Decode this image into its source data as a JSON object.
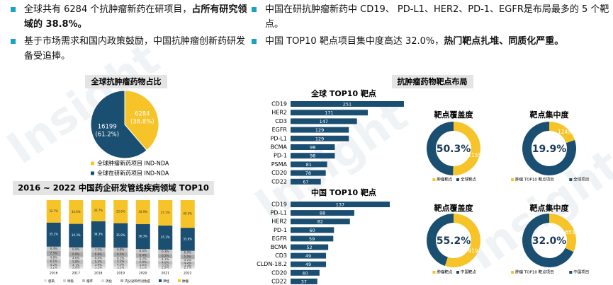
{
  "bullets": [
    {
      "text": "全球共有 6284 个抗肿瘤新药在研项目，",
      "bold": "占所有研究领域的 38.8%。"
    },
    {
      "text": "基于市场需求和国内政策鼓励，中国抗肿瘤创新药研发备受追捧。"
    },
    {
      "text": "中国在研抗肿瘤新药中 CD19、 PD-L1、HER2、PD-1、EGFR是布局最多的 5 个靶点。"
    },
    {
      "text": "中国 TOP10 靶点项目集中度高达 32.0%，",
      "bold": "热门靶点扎堆、同质化严重。"
    }
  ],
  "watermark": "Insight",
  "target_section_title": "抗肿瘤药物靶点布局",
  "chart_data": [
    {
      "type": "pie",
      "title": "全球抗肿瘤药物占比",
      "labels": [
        "全球肿瘤新药项目 IND-NDA",
        "全球在研新药项目 IND-NDA"
      ],
      "values": [
        6284,
        16199
      ],
      "percents": [
        38.8,
        61.2
      ],
      "percent_labels": [
        "(38.8%)",
        "(61.2%)"
      ],
      "colors": [
        "#f6c429",
        "#1b4f72"
      ]
    },
    {
      "type": "stacked_bar",
      "title": "2016 ~ 2022 中国药企研发管线疾病领域 TOP10",
      "categories": [
        "2016",
        "2017",
        "2018",
        "2019",
        "2020",
        "2021",
        "2022"
      ],
      "ylim": [
        0,
        100
      ],
      "series": [
        {
          "name": "感染",
          "color": "#e3e3e3",
          "values": [
            3.2,
            2.8,
            3.3,
            3.5,
            3.1,
            2.9,
            2.7
          ],
          "value_labels": [
            "3.2%",
            "2.8%",
            "3.3%",
            "3.5%",
            "3.1%",
            "2.9%",
            "2.7%"
          ]
        },
        {
          "name": "呼吸",
          "color": "#cfcfcf",
          "values": [
            4.2,
            4.1,
            3.9,
            4.0,
            3.6,
            3.5,
            3.3
          ],
          "value_labels": [
            "4.2%",
            "4.1%",
            "3.9%",
            "4.0%",
            "3.6%",
            "3.5%",
            "3.3%"
          ]
        },
        {
          "name": "循环",
          "color": "#bdbdbd",
          "values": [
            6.1,
            5.8,
            5.5,
            5.3,
            5.0,
            4.6,
            4.2
          ],
          "value_labels": [
            "6.1%",
            "5.8%",
            "5.5%",
            "5.3%",
            "5.0%",
            "4.6%",
            "4.2%"
          ]
        },
        {
          "name": "消化",
          "color": "#d8d8d8",
          "values": [
            4.8,
            4.6,
            4.4,
            4.5,
            4.2,
            4.3,
            4.0
          ],
          "value_labels": [
            "4.8%",
            "4.6%",
            "4.4%",
            "4.5%",
            "4.2%",
            "4.3%",
            "4.0%"
          ]
        },
        {
          "name": "内分泌和代谢",
          "color": "#a9a9a9",
          "values": [
            7.5,
            6.9,
            6.8,
            6.5,
            6.4,
            6.2,
            5.9
          ],
          "value_labels": [
            "7.5%",
            "6.9%",
            "6.8%",
            "6.5%",
            "6.4%",
            "6.2%",
            "5.9%"
          ]
        },
        {
          "name": "免疫",
          "color": "#c6c6c6",
          "values": [
            6.4,
            6.9,
            7.1,
            6.8,
            6.5,
            6.3,
            6.0
          ],
          "value_labels": [
            "6.4%",
            "6.9%",
            "7.1%",
            "6.8%",
            "6.5%",
            "6.3%",
            "6.0%"
          ]
        },
        {
          "name": "神经",
          "color": "#1b4f72",
          "values": [
            35.1,
            34.3,
            38.3,
            35.8,
            36.3,
            35.1,
            33.6
          ],
          "value_labels": [
            "35.1%",
            "34.3%",
            "38.3%",
            "35.8%",
            "36.3%",
            "35.1%",
            "33.6%"
          ]
        },
        {
          "name": "肿瘤",
          "color": "#f6c429",
          "values": [
            32.7,
            34.6,
            30.7,
            33.6,
            34.9,
            37.1,
            40.3
          ],
          "value_labels": [
            "32.7%",
            "34.6%",
            "30.7%",
            "33.6%",
            "34.9%",
            "37.1%",
            "40.3%"
          ]
        }
      ]
    },
    {
      "type": "hbar",
      "title": "全球 TOP10 靶点",
      "color": "#1b4f72",
      "categories": [
        "CD19",
        "HER2",
        "CD3",
        "EGFR",
        "PD-L1",
        "BCMA",
        "PD-1",
        "PSMA",
        "CD20",
        "CD22"
      ],
      "values": [
        251,
        171,
        147,
        129,
        129,
        98,
        98,
        81,
        78,
        67
      ]
    },
    {
      "type": "hbar",
      "title": "中国 TOP10 靶点",
      "color": "#1b4f72",
      "categories": [
        "CD19",
        "PD-L1",
        "HER2",
        "PD-1",
        "EGFR",
        "BCMA",
        "CD3",
        "CLDN-18.2",
        "CD20",
        "CD22"
      ],
      "values": [
        137,
        88,
        82,
        60,
        59,
        52,
        49,
        49,
        40,
        37
      ]
    },
    {
      "type": "donut",
      "title": "靶点覆盖度",
      "percent": 50.3,
      "percent_label": "50.3%",
      "count": 1155,
      "legend": [
        "肿瘤靶点",
        "全球靶点"
      ],
      "colors": [
        "#f6c429",
        "#1b4f72"
      ]
    },
    {
      "type": "donut",
      "title": "靶点集中度",
      "percent": 19.9,
      "percent_label": "19.9%",
      "count": 1249,
      "legend": [
        "肿瘤 TOP10 靶点项目",
        "全球项目"
      ],
      "colors": [
        "#f6c429",
        "#1b4f72"
      ]
    },
    {
      "type": "donut",
      "title": "靶点覆盖度",
      "percent": 55.2,
      "percent_label": "55.2%",
      "count": 419,
      "legend": [
        "肿瘤靶点",
        "中国靶点"
      ],
      "colors": [
        "#f6c429",
        "#1b4f72"
      ]
    },
    {
      "type": "donut",
      "title": "靶点集中度",
      "percent": 32.0,
      "percent_label": "32.0%",
      "count": 653,
      "legend": [
        "肿瘤 TOP10 靶点项目",
        "中国项目"
      ],
      "colors": [
        "#f6c429",
        "#1b4f72"
      ]
    }
  ]
}
